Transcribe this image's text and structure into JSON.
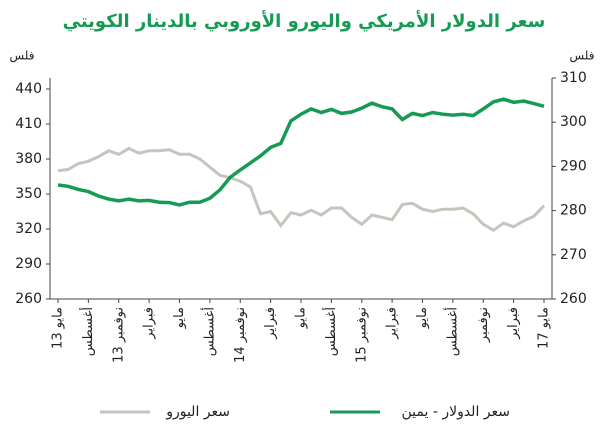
{
  "chart_data": {
    "type": "line",
    "title": "سعر الدولار الأمريكي واليورو الأوروبي بالدينار الكويتي",
    "y_label": "فلس",
    "y2_label": "فلس",
    "categories": [
      "مايو 13",
      null,
      null,
      "أغسطس",
      null,
      null,
      "نوفمبر 13",
      null,
      null,
      "فبراير",
      null,
      null,
      "مايو",
      null,
      null,
      "أغسطس",
      null,
      null,
      "نوفمبر 14",
      null,
      null,
      "فبراير",
      null,
      null,
      "مايو",
      null,
      null,
      "أغسطس",
      null,
      null,
      "نوفمبر 15",
      null,
      null,
      "فبراير",
      null,
      null,
      "مايو",
      null,
      null,
      "أغسطس",
      null,
      null,
      "نوفمبر",
      null,
      null,
      "فبراير",
      null,
      null,
      "مايو 17"
    ],
    "series": [
      {
        "name": "سعر اليورو",
        "color": "#c8c3bd",
        "axis": "y",
        "values": [
          370,
          371,
          376,
          378,
          382,
          387,
          384,
          389,
          385,
          387,
          387,
          388,
          384,
          384,
          380,
          373,
          366,
          364,
          361,
          356,
          333,
          335,
          323,
          334,
          332,
          336,
          332,
          338,
          338,
          330,
          324,
          332,
          330,
          328,
          341,
          342,
          337,
          335,
          337,
          337,
          338,
          333,
          324,
          319,
          325,
          322,
          327,
          331,
          340
        ]
      },
      {
        "name": "سعر الدولار - يمين",
        "color": "#169b55",
        "axis": "y2",
        "values": [
          285.8,
          285.5,
          284.8,
          284.3,
          283.3,
          282.6,
          282.2,
          282.6,
          282.2,
          282.3,
          281.9,
          281.8,
          281.3,
          281.9,
          281.9,
          282.8,
          284.7,
          287.5,
          289.2,
          290.8,
          292.4,
          294.3,
          295.2,
          300.3,
          301.8,
          303.0,
          302.2,
          302.9,
          302.0,
          302.3,
          303.2,
          304.3,
          303.5,
          303.0,
          300.6,
          302.0,
          301.5,
          302.2,
          301.8,
          301.6,
          301.8,
          301.5,
          303.0,
          304.6,
          305.2,
          304.5,
          304.8,
          304.2,
          303.6
        ]
      }
    ],
    "ylim": [
      260,
      440
    ],
    "yticks": [
      260,
      290,
      320,
      350,
      380,
      410,
      440
    ],
    "y2lim": [
      260,
      310
    ],
    "y2ticks": [
      260,
      270,
      280,
      290,
      300,
      310
    ],
    "title_color": "#169b55"
  }
}
